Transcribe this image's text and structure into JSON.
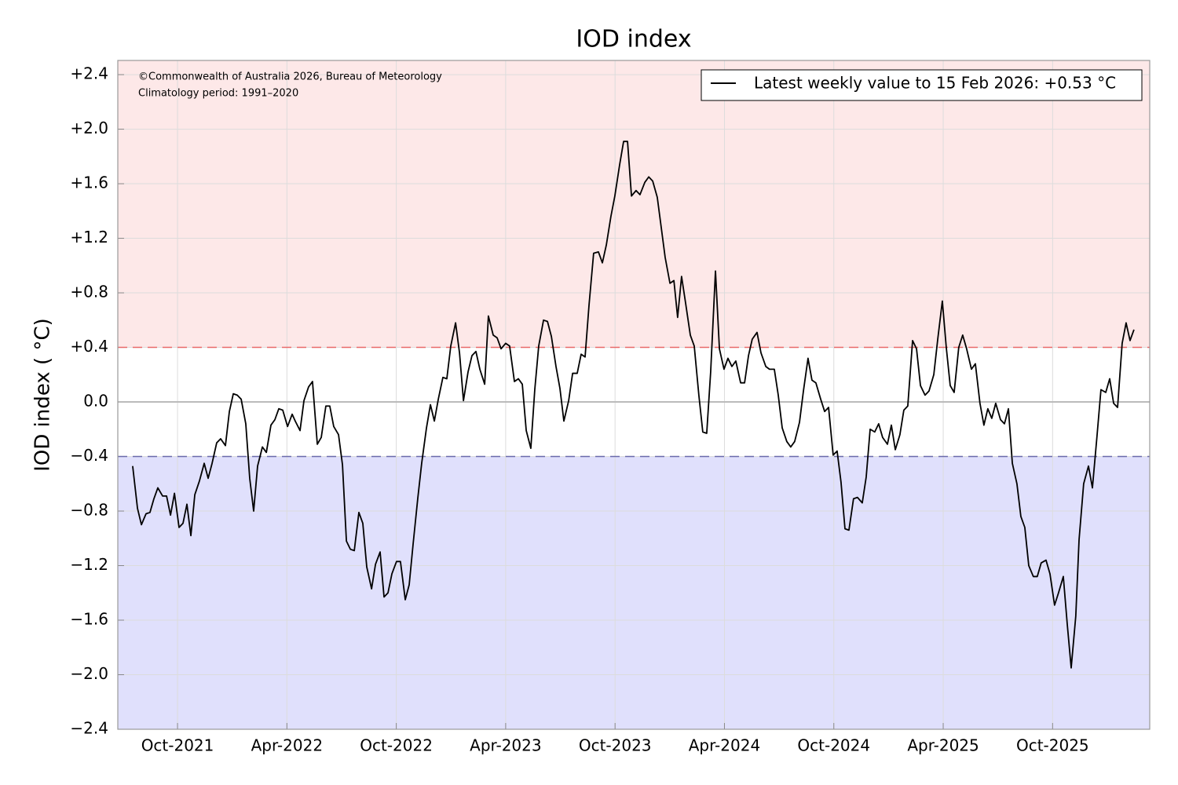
{
  "chart_data": {
    "type": "line",
    "title": "IOD index",
    "y_label": "IOD index ( °C)",
    "annotations": [
      "©Commonwealth of Australia 2026, Bureau of Meteorology",
      "Climatology period: 1991–2020"
    ],
    "xlim": [
      2021.477,
      2026.194
    ],
    "ylim": [
      -2.4,
      2.504
    ],
    "xticks": [
      {
        "value": 2021.75,
        "label": "Oct-2021"
      },
      {
        "value": 2022.25,
        "label": "Apr-2022"
      },
      {
        "value": 2022.75,
        "label": "Oct-2022"
      },
      {
        "value": 2023.25,
        "label": "Apr-2023"
      },
      {
        "value": 2023.75,
        "label": "Oct-2023"
      },
      {
        "value": 2024.25,
        "label": "Apr-2024"
      },
      {
        "value": 2024.75,
        "label": "Oct-2024"
      },
      {
        "value": 2025.25,
        "label": "Apr-2025"
      },
      {
        "value": 2025.75,
        "label": "Oct-2025"
      }
    ],
    "yticks": [
      {
        "value": 2.4,
        "label": "+2.4"
      },
      {
        "value": 2.0,
        "label": "+2.0"
      },
      {
        "value": 1.6,
        "label": "+1.6"
      },
      {
        "value": 1.2,
        "label": "+1.2"
      },
      {
        "value": 0.8,
        "label": "+0.8"
      },
      {
        "value": 0.4,
        "label": "+0.4"
      },
      {
        "value": 0,
        "label": "0.0"
      },
      {
        "value": -0.4,
        "label": "−0.4"
      },
      {
        "value": -0.8,
        "label": "−0.8"
      },
      {
        "value": -1.2,
        "label": "−1.2"
      },
      {
        "value": -1.6,
        "label": "−1.6"
      },
      {
        "value": -2.0,
        "label": "−2.0"
      },
      {
        "value": -2.4,
        "label": "−2.4"
      }
    ],
    "grid": true,
    "legend": "upper right",
    "zero_line_color": "#bbbbbb",
    "bands": [
      {
        "above": 0.4,
        "fill": "#fde8e8",
        "line_color": "#e86a6a"
      },
      {
        "below": -0.4,
        "fill": "#e0e0fc",
        "line_color": "#6a6aaa"
      }
    ],
    "x": [
      2021.545,
      2021.567,
      2021.585,
      2021.606,
      2021.624,
      2021.642,
      2021.66,
      2021.682,
      2021.7,
      2021.718,
      2021.736,
      2021.757,
      2021.775,
      2021.793,
      2021.811,
      2021.829,
      2021.85,
      2021.872,
      2021.89,
      2021.908,
      2021.929,
      2021.947,
      2021.969,
      2021.987,
      2022.005,
      2022.023,
      2022.041,
      2022.062,
      2022.08,
      2022.098,
      2022.116,
      2022.138,
      2022.156,
      2022.177,
      2022.195,
      2022.213,
      2022.231,
      2022.253,
      2022.274,
      2022.288,
      2022.31,
      2022.328,
      2022.349,
      2022.367,
      2022.389,
      2022.407,
      2022.428,
      2022.446,
      2022.464,
      2022.486,
      2022.504,
      2022.522,
      2022.54,
      2022.558,
      2022.579,
      2022.597,
      2022.615,
      2022.637,
      2022.655,
      2022.676,
      2022.694,
      2022.712,
      2022.73,
      2022.751,
      2022.769,
      2022.791,
      2022.809,
      2022.827,
      2022.848,
      2022.866,
      2022.888,
      2022.906,
      2022.924,
      2022.942,
      2022.963,
      2022.981,
      2022.999,
      2023.021,
      2023.039,
      2023.057,
      2023.078,
      2023.096,
      2023.114,
      2023.132,
      2023.154,
      2023.171,
      2023.193,
      2023.211,
      2023.229,
      2023.25,
      2023.268,
      2023.29,
      2023.308,
      2023.326,
      2023.344,
      2023.365,
      2023.383,
      2023.401,
      2023.423,
      2023.441,
      2023.459,
      2023.48,
      2023.498,
      2023.516,
      2023.538,
      2023.556,
      2023.577,
      2023.595,
      2023.613,
      2023.631,
      2023.652,
      2023.674,
      2023.692,
      2023.71,
      2023.731,
      2023.749,
      2023.771,
      2023.789,
      2023.807,
      2023.825,
      2023.846,
      2023.864,
      2023.886,
      2023.904,
      2023.922,
      2023.943,
      2023.961,
      2023.979,
      2024.001,
      2024.019,
      2024.036,
      2024.054,
      2024.072,
      2024.094,
      2024.112,
      2024.133,
      2024.151,
      2024.169,
      2024.187,
      2024.209,
      2024.227,
      2024.248,
      2024.266,
      2024.284,
      2024.302,
      2024.324,
      2024.342,
      2024.36,
      2024.377,
      2024.399,
      2024.417,
      2024.439,
      2024.456,
      2024.478,
      2024.496,
      2024.514,
      2024.535,
      2024.553,
      2024.571,
      2024.593,
      2024.611,
      2024.632,
      2024.65,
      2024.668,
      2024.69,
      2024.708,
      2024.726,
      2024.747,
      2024.765,
      2024.783,
      2024.801,
      2024.819,
      2024.84,
      2024.858,
      2024.88,
      2024.898,
      2024.916,
      2024.937,
      2024.955,
      2024.973,
      2024.995,
      2025.013,
      2025.031,
      2025.052,
      2025.07,
      2025.088,
      2025.11,
      2025.128,
      2025.146,
      2025.167,
      2025.185,
      2025.207,
      2025.225,
      2025.246,
      2025.264,
      2025.282,
      2025.3,
      2025.321,
      2025.339,
      2025.357,
      2025.379,
      2025.397,
      2025.418,
      2025.436,
      2025.454,
      2025.472,
      2025.49,
      2025.512,
      2025.53,
      2025.548,
      2025.566,
      2025.587,
      2025.605,
      2025.623,
      2025.641,
      2025.662,
      2025.68,
      2025.698,
      2025.72,
      2025.738,
      2025.759,
      2025.777,
      2025.799,
      2025.817,
      2025.835,
      2025.856,
      2025.871,
      2025.892,
      2025.914,
      2025.932,
      2025.953,
      2025.971,
      2025.993,
      2026.011,
      2026.029,
      2026.047,
      2026.068,
      2026.086,
      2026.104,
      2026.122
    ],
    "series": [
      {
        "name": "Latest weekly value to 15 Feb 2026: +0.53 °C",
        "color": "#000000",
        "values": [
          -0.47,
          -0.78,
          -0.9,
          -0.82,
          -0.81,
          -0.71,
          -0.63,
          -0.69,
          -0.69,
          -0.83,
          -0.67,
          -0.92,
          -0.89,
          -0.75,
          -0.98,
          -0.68,
          -0.58,
          -0.45,
          -0.56,
          -0.45,
          -0.3,
          -0.27,
          -0.32,
          -0.07,
          0.06,
          0.05,
          0.02,
          -0.16,
          -0.56,
          -0.8,
          -0.47,
          -0.33,
          -0.37,
          -0.17,
          -0.13,
          -0.05,
          -0.06,
          -0.18,
          -0.09,
          -0.14,
          -0.21,
          0.01,
          0.11,
          0.15,
          -0.31,
          -0.26,
          -0.03,
          -0.03,
          -0.18,
          -0.24,
          -0.46,
          -1.02,
          -1.08,
          -1.09,
          -0.81,
          -0.89,
          -1.21,
          -1.37,
          -1.19,
          -1.1,
          -1.43,
          -1.4,
          -1.26,
          -1.17,
          -1.17,
          -1.45,
          -1.34,
          -1.04,
          -0.71,
          -0.45,
          -0.19,
          -0.02,
          -0.14,
          0.02,
          0.18,
          0.17,
          0.41,
          0.58,
          0.36,
          0.01,
          0.22,
          0.34,
          0.37,
          0.24,
          0.13,
          0.63,
          0.49,
          0.47,
          0.39,
          0.43,
          0.41,
          0.15,
          0.17,
          0.13,
          -0.21,
          -0.34,
          0.09,
          0.41,
          0.6,
          0.59,
          0.48,
          0.26,
          0.1,
          -0.14,
          0.01,
          0.21,
          0.21,
          0.35,
          0.33,
          0.71,
          1.09,
          1.1,
          1.02,
          1.15,
          1.36,
          1.51,
          1.74,
          1.91,
          1.91,
          1.51,
          1.55,
          1.52,
          1.61,
          1.65,
          1.62,
          1.5,
          1.28,
          1.06,
          0.87,
          0.89,
          0.62,
          0.92,
          0.73,
          0.49,
          0.41,
          0.05,
          -0.22,
          -0.23,
          0.22,
          0.96,
          0.39,
          0.24,
          0.32,
          0.26,
          0.3,
          0.14,
          0.14,
          0.34,
          0.46,
          0.51,
          0.36,
          0.26,
          0.24,
          0.24,
          0.05,
          -0.19,
          -0.29,
          -0.33,
          -0.29,
          -0.15,
          0.08,
          0.32,
          0.16,
          0.14,
          0.02,
          -0.07,
          -0.04,
          -0.39,
          -0.36,
          -0.59,
          -0.93,
          -0.94,
          -0.71,
          -0.7,
          -0.74,
          -0.55,
          -0.2,
          -0.22,
          -0.16,
          -0.26,
          -0.31,
          -0.17,
          -0.35,
          -0.24,
          -0.06,
          -0.03,
          0.45,
          0.39,
          0.12,
          0.05,
          0.08,
          0.2,
          0.46,
          0.74,
          0.4,
          0.12,
          0.07,
          0.4,
          0.49,
          0.39,
          0.24,
          0.28,
          -0.01,
          -0.17,
          -0.05,
          -0.12,
          -0.01,
          -0.13,
          -0.16,
          -0.05,
          -0.45,
          -0.6,
          -0.84,
          -0.92,
          -1.2,
          -1.28,
          -1.28,
          -1.18,
          -1.16,
          -1.26,
          -1.49,
          -1.4,
          -1.28,
          -1.63,
          -1.95,
          -1.57,
          -1.01,
          -0.6,
          -0.47,
          -0.63,
          -0.25,
          0.09,
          0.07,
          0.17,
          -0.01,
          -0.04,
          0.43,
          0.58,
          0.45,
          0.53
        ]
      }
    ]
  }
}
